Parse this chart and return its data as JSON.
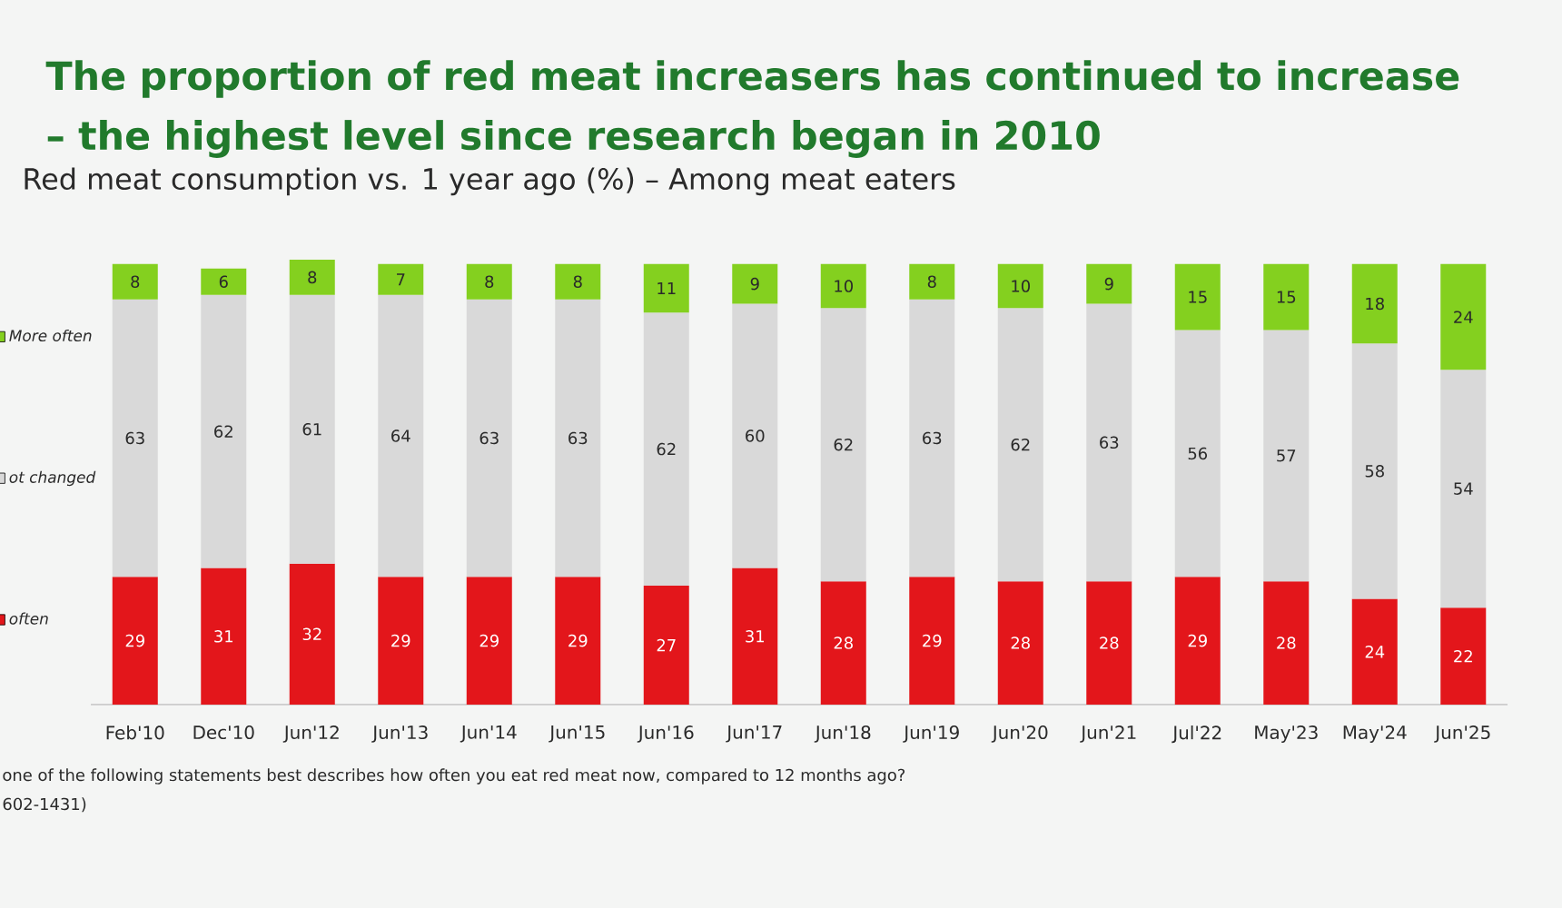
{
  "chart_data": {
    "type": "bar",
    "stacked": true,
    "title": "The proportion of red meat increasers has continued to increase – the highest level since research began in 2010",
    "subtitle": "Red meat consumption vs. 1 year ago (%) – Among meat eaters",
    "annotations": [
      "one of the following statements best describes how often you eat red meat now, compared to 12 months ago?",
      "602-1431)"
    ],
    "categories": [
      "Feb'10",
      "Dec'10",
      "Jun'12",
      "Jun'13",
      "Jun'14",
      "Jun'15",
      "Jun'16",
      "Jun'17",
      "Jun'18",
      "Jun'19",
      "Jun'20",
      "Jun'21",
      "Jul'22",
      "May'23",
      "May'24",
      "Jun'25"
    ],
    "series": [
      {
        "name": "often",
        "color": "#e3161b",
        "values": [
          29,
          31,
          32,
          29,
          29,
          29,
          27,
          31,
          28,
          29,
          28,
          28,
          29,
          28,
          24,
          22
        ]
      },
      {
        "name": "ot changed",
        "color": "#d9d9d9",
        "values": [
          63,
          62,
          61,
          64,
          63,
          63,
          62,
          60,
          62,
          63,
          62,
          63,
          56,
          57,
          58,
          54
        ]
      },
      {
        "name": "More often",
        "color": "#84d01f",
        "values": [
          8,
          6,
          8,
          7,
          8,
          8,
          11,
          9,
          10,
          8,
          10,
          9,
          15,
          15,
          18,
          24
        ]
      }
    ],
    "data_labels": true,
    "legend": "left",
    "tick_labels": "x"
  }
}
